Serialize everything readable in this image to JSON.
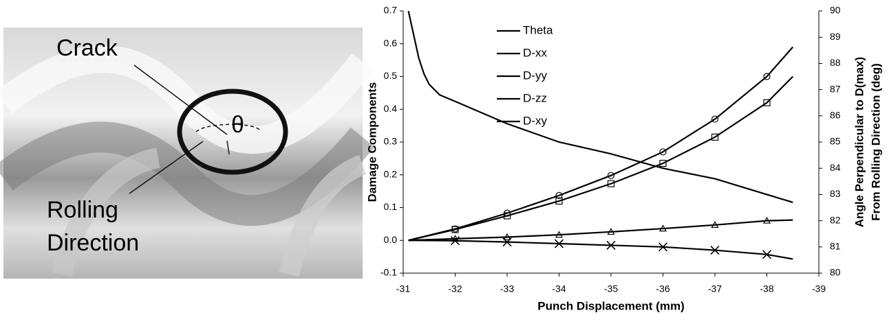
{
  "image": {
    "labels": {
      "crack": "Crack",
      "theta": "θ",
      "rolling": [
        "Rolling",
        "Direction"
      ]
    }
  },
  "chart_data": {
    "type": "line",
    "x_label": "Punch Displacement (mm)",
    "y_label": "Damage Components",
    "y2_label": [
      "Angle Perpendicular to D(max)",
      "From Rolling Direction (deg)"
    ],
    "xlim": [
      -31,
      -39
    ],
    "xticks": [
      -31,
      -32,
      -33,
      -34,
      -35,
      -36,
      -37,
      -38,
      -39
    ],
    "ylim": [
      -0.1,
      0.7
    ],
    "yticks": [
      -0.1,
      {
        "value": 0,
        "label": "0.0"
      },
      0.1,
      0.2,
      0.3,
      0.4,
      0.5,
      0.6,
      0.7
    ],
    "y2lim": [
      80,
      90
    ],
    "y2ticks": [
      80,
      81,
      82,
      83,
      84,
      85,
      86,
      87,
      88,
      89,
      90
    ],
    "grid": false,
    "legend": "upper left",
    "series": [
      {
        "name": "Theta",
        "color": "#000000",
        "axis": "y2",
        "marker": "none",
        "x": [
          -31.1,
          -31.2,
          -31.3,
          -31.4,
          -31.5,
          -31.7,
          -32,
          -33,
          -34,
          -35,
          -36,
          -37,
          -38,
          -38.5
        ],
        "values": [
          90,
          89.1,
          88.2,
          87.6,
          87.2,
          86.8,
          86.55,
          85.7,
          85.0,
          84.55,
          84.0,
          83.6,
          83.0,
          82.7
        ]
      },
      {
        "name": "D-xx",
        "color": "#000000",
        "marker": "circle",
        "x": [
          -31.1,
          -32,
          -33,
          -34,
          -35,
          -36,
          -37,
          -38,
          -38.5
        ],
        "values": [
          0,
          0.035,
          0.083,
          0.137,
          0.198,
          0.27,
          0.37,
          0.5,
          0.59
        ]
      },
      {
        "name": "D-yy",
        "color": "#000000",
        "marker": "square",
        "x": [
          -31.1,
          -32,
          -33,
          -34,
          -35,
          -36,
          -37,
          -38,
          -38.5
        ],
        "values": [
          0,
          0.033,
          0.075,
          0.12,
          0.173,
          0.235,
          0.315,
          0.42,
          0.5
        ]
      },
      {
        "name": "D-zz",
        "color": "#000000",
        "marker": "triangle",
        "x": [
          -31.1,
          -32,
          -33,
          -34,
          -35,
          -36,
          -37,
          -38,
          -38.5
        ],
        "values": [
          0,
          0.005,
          0.01,
          0.017,
          0.026,
          0.036,
          0.047,
          0.06,
          0.062
        ]
      },
      {
        "name": "D-xy",
        "color": "#000000",
        "marker": "x",
        "x": [
          -31.1,
          -32,
          -33,
          -34,
          -35,
          -36,
          -37,
          -38,
          -38.5
        ],
        "values": [
          0,
          -0.001,
          -0.005,
          -0.01,
          -0.015,
          -0.02,
          -0.03,
          -0.043,
          -0.057
        ]
      }
    ]
  }
}
